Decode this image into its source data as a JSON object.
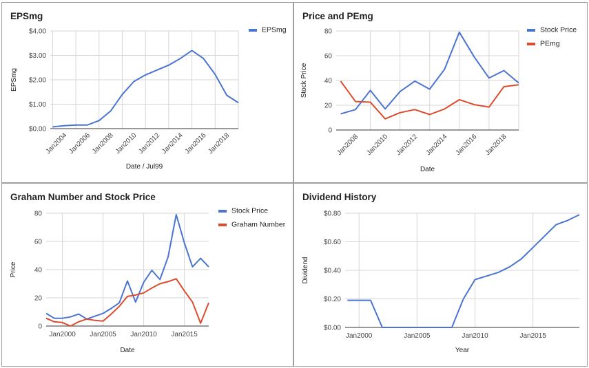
{
  "colors": {
    "blue": "#4a74d0",
    "red": "#dc4b2c",
    "grid": "#d6d6d6",
    "axis": "#333333"
  },
  "chart_data": [
    {
      "type": "line",
      "title": "EPSmg",
      "xlabel": "Date / Jul99",
      "ylabel": "EPSmg",
      "x_tick_labels": [
        "Jan2004",
        "Jan2006",
        "Jan2008",
        "Jan2010",
        "Jan2012",
        "Jan2014",
        "Jan2016",
        "Jan2018"
      ],
      "y_tick_labels": [
        "$0.00",
        "$1.00",
        "$2.00",
        "$3.00",
        "$4.00"
      ],
      "ylim": [
        0,
        4
      ],
      "xlim": [
        2002.8,
        2019.0
      ],
      "grid": true,
      "legend": "top-right",
      "series": [
        {
          "name": "EPSmg",
          "color": "blue",
          "x": [
            2003,
            2004,
            2005,
            2006,
            2007,
            2008,
            2009,
            2010,
            2011,
            2012,
            2013,
            2014,
            2015,
            2016,
            2017,
            2018,
            2019
          ],
          "y": [
            0.07,
            0.12,
            0.15,
            0.15,
            0.33,
            0.72,
            1.4,
            1.93,
            2.2,
            2.4,
            2.6,
            2.87,
            3.2,
            2.87,
            2.22,
            1.37,
            1.06
          ]
        }
      ]
    },
    {
      "type": "line",
      "title": "Price and PEmg",
      "xlabel": "Date",
      "ylabel": "Stock Price",
      "x_tick_labels": [
        "Jan2008",
        "Jan2010",
        "Jan2012",
        "Jan2014",
        "Jan2016",
        "Jan2018"
      ],
      "y_tick_labels": [
        "0",
        "20",
        "40",
        "60",
        "80"
      ],
      "ylim": [
        0,
        80
      ],
      "xlim": [
        2006.7,
        2019.0
      ],
      "grid": true,
      "legend": "top-right",
      "series": [
        {
          "name": "Stock Price",
          "color": "blue",
          "x": [
            2007,
            2008,
            2009,
            2010,
            2011,
            2012,
            2013,
            2014,
            2015,
            2016,
            2017,
            2018,
            2019
          ],
          "y": [
            13,
            16.5,
            32,
            17,
            31,
            39.5,
            33,
            49,
            79,
            59,
            42,
            48,
            38
          ]
        },
        {
          "name": "PEmg",
          "color": "red",
          "x": [
            2007,
            2008,
            2009,
            2010,
            2011,
            2012,
            2013,
            2014,
            2015,
            2016,
            2017,
            2018,
            2019
          ],
          "y": [
            39.5,
            23,
            22.5,
            9,
            14,
            16.5,
            12.5,
            17,
            24.5,
            20.5,
            18.5,
            35,
            36.5
          ]
        }
      ]
    },
    {
      "type": "line",
      "title": "Graham Number and Stock Price",
      "xlabel": "Date",
      "ylabel": "Price",
      "x_tick_labels": [
        "Jan2000",
        "Jan2005",
        "Jan2010",
        "Jan2015"
      ],
      "y_tick_labels": [
        "0",
        "20",
        "40",
        "60",
        "80"
      ],
      "ylim": [
        0,
        80
      ],
      "xlim": [
        1998.0,
        2018.0
      ],
      "grid": true,
      "legend": "top-right",
      "series": [
        {
          "name": "Stock Price",
          "color": "blue",
          "x": [
            1998,
            1999,
            2000,
            2001,
            2002,
            2003,
            2004,
            2005,
            2006,
            2007,
            2008,
            2009,
            2010,
            2011,
            2012,
            2013,
            2014,
            2015,
            2016,
            2017,
            2018
          ],
          "y": [
            9,
            5.5,
            5.5,
            6.5,
            8.5,
            5,
            7,
            9,
            12.5,
            16.5,
            32,
            17,
            31,
            39.5,
            33,
            49,
            79,
            59,
            42,
            48,
            42
          ]
        },
        {
          "name": "Graham Number",
          "color": "red",
          "x": [
            1998,
            1999,
            2000,
            2001,
            2002,
            2003,
            2004,
            2005,
            2006,
            2007,
            2008,
            2009,
            2010,
            2011,
            2012,
            2013,
            2014,
            2015,
            2016,
            2017,
            2018
          ],
          "y": [
            5.5,
            3,
            2.5,
            0,
            3,
            5,
            4,
            3.5,
            8.5,
            14,
            21,
            22,
            23.5,
            27,
            30,
            31.5,
            33.5,
            25,
            17,
            2,
            16.5
          ]
        }
      ]
    },
    {
      "type": "line",
      "title": "Dividend History",
      "xlabel": "Year",
      "ylabel": "Dividend",
      "x_tick_labels": [
        "Jan2000",
        "Jan2005",
        "Jan2010",
        "Jan2015"
      ],
      "y_tick_labels": [
        "$0.00",
        "$0.20",
        "$0.40",
        "$0.60",
        "$0.80"
      ],
      "ylim": [
        0,
        0.8
      ],
      "xlim": [
        1998.8,
        2019.0
      ],
      "grid": true,
      "legend": "none",
      "series": [
        {
          "name": "",
          "color": "blue",
          "x": [
            1999,
            2000,
            2001,
            2002,
            2003,
            2004,
            2005,
            2006,
            2007,
            2008,
            2009,
            2010,
            2011,
            2012,
            2013,
            2014,
            2015,
            2016,
            2017,
            2018,
            2019
          ],
          "y": [
            0.19,
            0.19,
            0.19,
            0,
            0,
            0,
            0,
            0,
            0,
            0,
            0.2,
            0.335,
            0.36,
            0.385,
            0.425,
            0.48,
            0.56,
            0.64,
            0.72,
            0.75,
            0.79
          ]
        }
      ]
    }
  ]
}
